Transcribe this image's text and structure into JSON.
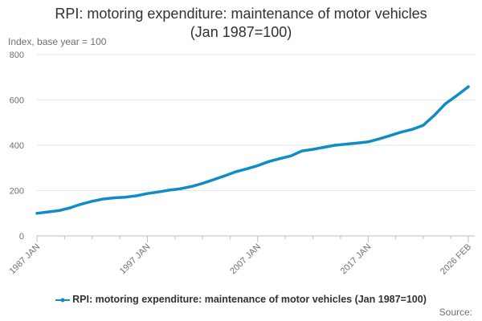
{
  "chart_data": {
    "type": "line",
    "title_lines": [
      "RPI: motoring expenditure: maintenance of motor vehicles",
      "(Jan 1987=100)"
    ],
    "ylabel": "Index, base year = 100",
    "ylim": [
      0,
      800
    ],
    "yticks": [
      0,
      200,
      400,
      600,
      800
    ],
    "xlim": [
      1987.0,
      2026.08
    ],
    "xticks": [
      {
        "x": 1987.0,
        "label": "1987 JAN"
      },
      {
        "x": 1997.0,
        "label": "1997 JAN"
      },
      {
        "x": 2007.0,
        "label": "2007 JAN"
      },
      {
        "x": 2017.0,
        "label": "2017 JAN"
      },
      {
        "x": 2026.08,
        "label": "2026 FEB"
      }
    ],
    "minor_xticks": [
      1989.5,
      1992.0,
      1994.5,
      1999.5,
      2002.0,
      2004.5,
      2009.5,
      2012.0,
      2014.5,
      2019.5,
      2022.0,
      2024.5
    ],
    "series": [
      {
        "name": "RPI: motoring expenditure: maintenance of motor vehicles (Jan 1987=100)",
        "color": "#0f8bc6",
        "x": [
          1987.0,
          1988.0,
          1989.0,
          1990.0,
          1991.0,
          1992.0,
          1993.0,
          1994.0,
          1995.0,
          1996.0,
          1997.0,
          1998.0,
          1999.0,
          2000.0,
          2001.0,
          2002.0,
          2003.0,
          2004.0,
          2005.0,
          2006.0,
          2007.0,
          2008.0,
          2009.0,
          2010.0,
          2011.0,
          2012.0,
          2013.0,
          2014.0,
          2015.0,
          2016.0,
          2017.0,
          2018.0,
          2019.0,
          2020.0,
          2021.0,
          2022.0,
          2023.0,
          2024.0,
          2025.0,
          2026.08
        ],
        "values": [
          100,
          106,
          112,
          124,
          140,
          153,
          163,
          168,
          171,
          177,
          187,
          194,
          202,
          208,
          218,
          232,
          248,
          265,
          283,
          296,
          310,
          328,
          341,
          353,
          375,
          382,
          391,
          400,
          405,
          410,
          415,
          428,
          443,
          458,
          470,
          488,
          532,
          583,
          618,
          658
        ]
      }
    ]
  },
  "legend": {
    "label": "RPI: motoring expenditure: maintenance of motor vehicles (Jan 1987=100)"
  },
  "source": {
    "label": "Source:"
  }
}
